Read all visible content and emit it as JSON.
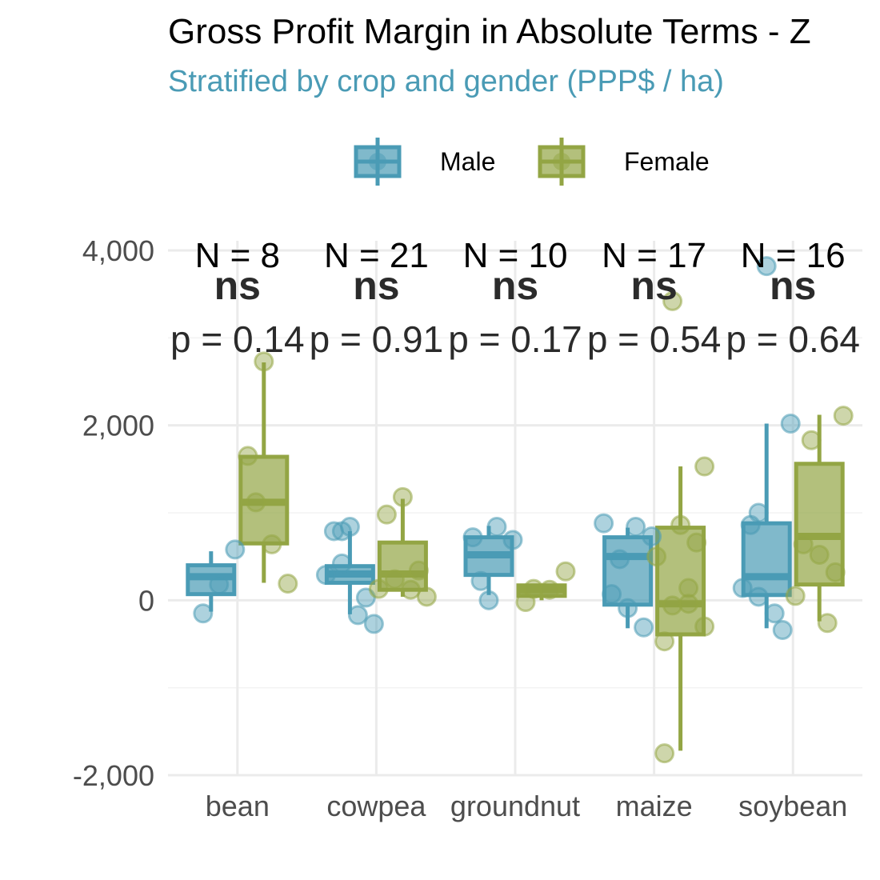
{
  "chart_data": {
    "type": "box",
    "title": "Gross Profit Margin in Absolute Terms - Z",
    "subtitle": "Stratified by crop and gender (PPP$ / ha)",
    "xlabel": "",
    "ylabel": "",
    "categories": [
      "bean",
      "cowpea",
      "groundnut",
      "maize",
      "soybean"
    ],
    "ylim": [
      -2000,
      4000
    ],
    "yticks": [
      -2000,
      0,
      2000,
      4000
    ],
    "ytick_labels": [
      "-2,000",
      "0",
      "2,000",
      "4,000"
    ],
    "grid": true,
    "legend_position": "top",
    "colors": {
      "Male": "#4a9bb5",
      "Female": "#93a544"
    },
    "series": [
      {
        "name": "Male",
        "boxes": [
          {
            "category": "bean",
            "min": -130,
            "q1": 70,
            "median": 270,
            "q3": 400,
            "max": 560
          },
          {
            "category": "cowpea",
            "min": -160,
            "q1": 200,
            "median": 300,
            "q3": 390,
            "max": 790
          },
          {
            "category": "groundnut",
            "min": 60,
            "q1": 290,
            "median": 520,
            "q3": 720,
            "max": 850
          },
          {
            "category": "maize",
            "min": -320,
            "q1": -50,
            "median": 500,
            "q3": 720,
            "max": 830
          },
          {
            "category": "soybean",
            "min": -320,
            "q1": 60,
            "median": 270,
            "q3": 880,
            "max": 2020
          }
        ],
        "points": [
          {
            "category": "bean",
            "y": -150
          },
          {
            "category": "bean",
            "y": 180
          },
          {
            "category": "bean",
            "y": 580
          },
          {
            "category": "cowpea",
            "y": 790
          },
          {
            "category": "cowpea",
            "y": -170
          },
          {
            "category": "cowpea",
            "y": -270
          },
          {
            "category": "cowpea",
            "y": 790
          },
          {
            "category": "cowpea",
            "y": 840
          },
          {
            "category": "cowpea",
            "y": 30
          },
          {
            "category": "cowpea",
            "y": 290
          },
          {
            "category": "cowpea",
            "y": 420
          },
          {
            "category": "groundnut",
            "y": 220
          },
          {
            "category": "groundnut",
            "y": 840
          },
          {
            "category": "groundnut",
            "y": 690
          },
          {
            "category": "groundnut",
            "y": 720
          },
          {
            "category": "groundnut",
            "y": 0
          },
          {
            "category": "maize",
            "y": 470
          },
          {
            "category": "maize",
            "y": 840
          },
          {
            "category": "maize",
            "y": 730
          },
          {
            "category": "maize",
            "y": 70
          },
          {
            "category": "maize",
            "y": -90
          },
          {
            "category": "maize",
            "y": -310
          },
          {
            "category": "maize",
            "y": 880
          },
          {
            "category": "soybean",
            "y": 1000
          },
          {
            "category": "soybean",
            "y": -150
          },
          {
            "category": "soybean",
            "y": 2020
          },
          {
            "category": "soybean",
            "y": 860
          },
          {
            "category": "soybean",
            "y": 3820
          },
          {
            "category": "soybean",
            "y": -340
          },
          {
            "category": "soybean",
            "y": 140
          },
          {
            "category": "soybean",
            "y": 40
          }
        ]
      },
      {
        "name": "Female",
        "boxes": [
          {
            "category": "bean",
            "min": 200,
            "q1": 650,
            "median": 1120,
            "q3": 1640,
            "max": 2720
          },
          {
            "category": "cowpea",
            "min": 40,
            "q1": 120,
            "median": 300,
            "q3": 660,
            "max": 1160
          },
          {
            "category": "groundnut",
            "min": 0,
            "q1": 50,
            "median": 120,
            "q3": 170,
            "max": 170
          },
          {
            "category": "maize",
            "min": -1720,
            "q1": -390,
            "median": -40,
            "q3": 830,
            "max": 1530
          },
          {
            "category": "soybean",
            "min": -240,
            "q1": 180,
            "median": 730,
            "q3": 1560,
            "max": 2120
          }
        ],
        "points": [
          {
            "category": "bean",
            "y": 1120
          },
          {
            "category": "bean",
            "y": 640
          },
          {
            "category": "bean",
            "y": 190
          },
          {
            "category": "bean",
            "y": 1650
          },
          {
            "category": "bean",
            "y": 2730
          },
          {
            "category": "cowpea",
            "y": 240
          },
          {
            "category": "cowpea",
            "y": 120
          },
          {
            "category": "cowpea",
            "y": 40
          },
          {
            "category": "cowpea",
            "y": 980
          },
          {
            "category": "cowpea",
            "y": 1180
          },
          {
            "category": "cowpea",
            "y": 340
          },
          {
            "category": "cowpea",
            "y": 130
          },
          {
            "category": "groundnut",
            "y": 130
          },
          {
            "category": "groundnut",
            "y": 120
          },
          {
            "category": "groundnut",
            "y": 330
          },
          {
            "category": "groundnut",
            "y": -20
          },
          {
            "category": "maize",
            "y": 3420
          },
          {
            "category": "maize",
            "y": 140
          },
          {
            "category": "maize",
            "y": 1530
          },
          {
            "category": "maize",
            "y": -470
          },
          {
            "category": "maize",
            "y": 860
          },
          {
            "category": "maize",
            "y": 660
          },
          {
            "category": "maize",
            "y": 500
          },
          {
            "category": "maize",
            "y": -60
          },
          {
            "category": "maize",
            "y": -40
          },
          {
            "category": "maize",
            "y": -300
          },
          {
            "category": "maize",
            "y": -1750
          },
          {
            "category": "soybean",
            "y": 1830
          },
          {
            "category": "soybean",
            "y": -260
          },
          {
            "category": "soybean",
            "y": 2110
          },
          {
            "category": "soybean",
            "y": 640
          },
          {
            "category": "soybean",
            "y": 520
          },
          {
            "category": "soybean",
            "y": 320
          },
          {
            "category": "soybean",
            "y": 50
          }
        ]
      }
    ],
    "annotations": [
      {
        "category": "bean",
        "n": "N = 8",
        "sig": "ns",
        "p": "p = 0.14"
      },
      {
        "category": "cowpea",
        "n": "N = 21",
        "sig": "ns",
        "p": "p = 0.91"
      },
      {
        "category": "groundnut",
        "n": "N = 10",
        "sig": "ns",
        "p": "p = 0.17"
      },
      {
        "category": "maize",
        "n": "N = 17",
        "sig": "ns",
        "p": "p = 0.54"
      },
      {
        "category": "soybean",
        "n": "N = 16",
        "sig": "ns",
        "p": "p = 0.64"
      }
    ]
  }
}
